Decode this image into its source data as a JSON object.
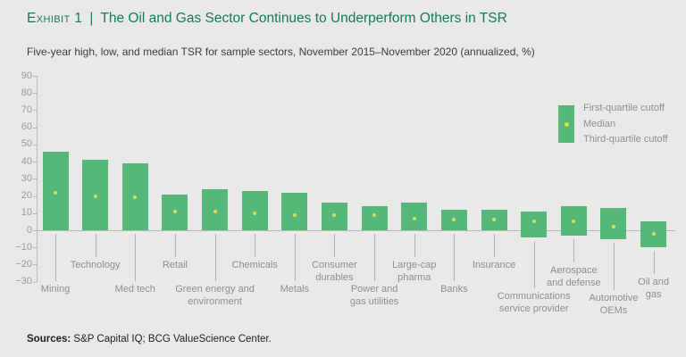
{
  "header": {
    "kicker": "Exhibit 1",
    "divider": "|",
    "title": "The Oil and Gas Sector Continues to Underperform Others in TSR",
    "subtitle": "Five-year high, low, and median TSR for sample sectors, November 2015–November 2020 (annualized, %)"
  },
  "chart_data": {
    "type": "bar",
    "variant": "floating-quartile-range-bars-with-median-dot",
    "title": "Five-year high, low, and median TSR for sample sectors, November 2015–November 2020 (annualized, %)",
    "xlabel": "",
    "ylabel": "",
    "ylim": [
      -30,
      90
    ],
    "ytick_step": 10,
    "grid": false,
    "yticks": [
      90,
      80,
      70,
      60,
      50,
      40,
      30,
      20,
      10,
      0,
      -10,
      -20,
      -30
    ],
    "ytick_labels": [
      "90",
      "80",
      "70",
      "60",
      "50",
      "40",
      "30",
      "20",
      "10",
      "0",
      "−10",
      "−20",
      "−30"
    ],
    "legend": {
      "position": "right",
      "items": [
        "First-quartile cutoff",
        "Median",
        "Third-quartile cutoff"
      ]
    },
    "categories": [
      {
        "name": "Mining",
        "lines": [
          "Mining"
        ],
        "row": "lower"
      },
      {
        "name": "Technology",
        "lines": [
          "Technology"
        ],
        "row": "upper"
      },
      {
        "name": "Med tech",
        "lines": [
          "Med tech"
        ],
        "row": "lower"
      },
      {
        "name": "Retail",
        "lines": [
          "Retail"
        ],
        "row": "upper"
      },
      {
        "name": "Green energy and environment",
        "lines": [
          "Green energy and",
          "environment"
        ],
        "row": "lower"
      },
      {
        "name": "Chemicals",
        "lines": [
          "Chemicals"
        ],
        "row": "upper"
      },
      {
        "name": "Metals",
        "lines": [
          "Metals"
        ],
        "row": "lower"
      },
      {
        "name": "Consumer durables",
        "lines": [
          "Consumer",
          "durables"
        ],
        "row": "upper"
      },
      {
        "name": "Power and gas utilities",
        "lines": [
          "Power and",
          "gas utilities"
        ],
        "row": "lower"
      },
      {
        "name": "Large-cap pharma",
        "lines": [
          "Large-cap",
          "pharma"
        ],
        "row": "upper"
      },
      {
        "name": "Banks",
        "lines": [
          "Banks"
        ],
        "row": "lower"
      },
      {
        "name": "Insurance",
        "lines": [
          "Insurance"
        ],
        "row": "upper"
      },
      {
        "name": "Communications service provider",
        "lines": [
          "Communications",
          "service provider"
        ],
        "row": "lower"
      },
      {
        "name": "Aerospace and defense",
        "lines": [
          "Aerospace",
          "and defense"
        ],
        "row": "upper"
      },
      {
        "name": "Automotive OEMs",
        "lines": [
          "Automotive",
          "OEMs"
        ],
        "row": "lower"
      },
      {
        "name": "Oil and gas",
        "lines": [
          "Oil and",
          "gas"
        ],
        "row": "upper"
      }
    ],
    "series": [
      {
        "name": "First-quartile cutoff",
        "values": [
          46,
          41,
          39,
          21,
          24,
          23,
          22,
          16,
          14,
          16,
          12,
          12,
          11,
          14,
          13,
          5
        ]
      },
      {
        "name": "Median",
        "values": [
          22,
          20,
          19,
          11,
          11,
          10,
          9,
          9,
          9,
          7,
          6,
          6,
          5,
          5,
          2,
          -2
        ]
      },
      {
        "name": "Third-quartile cutoff",
        "values": [
          0,
          0,
          0,
          0,
          0,
          0,
          0,
          0,
          0,
          0,
          0,
          0,
          -4,
          -3,
          -5,
          -10
        ]
      }
    ]
  },
  "footer": {
    "label": "Sources:",
    "text": " S&P Capital IQ; BCG ValueScience Center."
  },
  "colors": {
    "background": "#e9e9e8",
    "accent_green": "#137a5e",
    "bar_green": "#55b77a",
    "median_yellow": "#d7e04a",
    "axis_gray": "#b8b8b6",
    "leader_gray": "#b3b3b1",
    "label_gray": "#8e8e8c",
    "tick_label_gray": "#9a9a98",
    "subtitle_text": "#3c3c3a",
    "footer_text": "#1e1e1e"
  }
}
